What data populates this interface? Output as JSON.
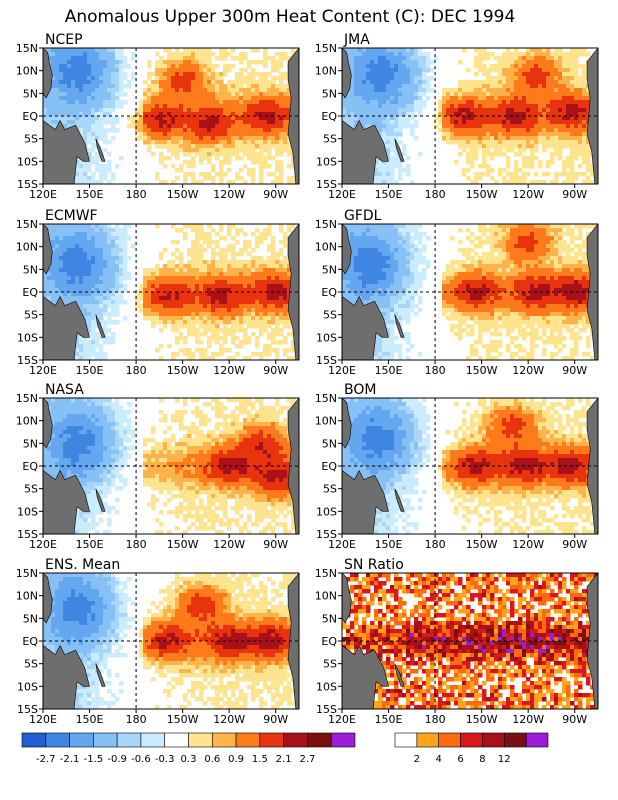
{
  "figure_title": "Anomalous Upper 300m Heat Content (C): DEC 1994",
  "chart_data": [
    {
      "type": "heatmap",
      "title": "NCEP",
      "xticks": [
        "120E",
        "150E",
        "180",
        "150W",
        "120W",
        "90W"
      ],
      "yticks": [
        "15N",
        "10N",
        "5N",
        "EQ",
        "5S",
        "10S",
        "15S"
      ],
      "xlim": [
        120,
        285
      ],
      "ylim": [
        -15,
        15
      ],
      "hot_spots": [
        [
          210,
          8
        ],
        [
          195,
          -1
        ],
        [
          265,
          0
        ],
        [
          228,
          -2
        ]
      ],
      "cold_centre": [
        145,
        10
      ]
    },
    {
      "type": "heatmap",
      "title": "JMA",
      "xticks": [
        "120E",
        "150E",
        "180",
        "150W",
        "120W",
        "90W"
      ],
      "yticks": [
        "15N",
        "10N",
        "5N",
        "EQ",
        "5S",
        "10S",
        "15S"
      ],
      "xlim": [
        120,
        285
      ],
      "ylim": [
        -15,
        15
      ],
      "hot_spots": [
        [
          245,
          9
        ],
        [
          198,
          0
        ],
        [
          232,
          0
        ],
        [
          268,
          1
        ]
      ],
      "cold_centre": [
        148,
        9
      ]
    },
    {
      "type": "heatmap",
      "title": "ECMWF",
      "xticks": [
        "120E",
        "150E",
        "180",
        "150W",
        "120W",
        "90W"
      ],
      "yticks": [
        "15N",
        "10N",
        "5N",
        "EQ",
        "5S",
        "10S",
        "15S"
      ],
      "xlim": [
        120,
        285
      ],
      "ylim": [
        -15,
        15
      ],
      "hot_spots": [
        [
          200,
          -1
        ],
        [
          235,
          -1
        ],
        [
          270,
          0
        ]
      ],
      "cold_centre": [
        145,
        6
      ]
    },
    {
      "type": "heatmap",
      "title": "GFDL",
      "xticks": [
        "120E",
        "150E",
        "180",
        "150W",
        "120W",
        "90W"
      ],
      "yticks": [
        "15N",
        "10N",
        "5N",
        "EQ",
        "5S",
        "10S",
        "15S"
      ],
      "xlim": [
        120,
        285
      ],
      "ylim": [
        -15,
        15
      ],
      "hot_spots": [
        [
          240,
          11
        ],
        [
          205,
          0
        ],
        [
          245,
          0
        ],
        [
          272,
          0
        ]
      ],
      "cold_centre": [
        140,
        6
      ]
    },
    {
      "type": "heatmap",
      "title": "NASA",
      "xticks": [
        "120E",
        "150E",
        "180",
        "150W",
        "120W",
        "90W"
      ],
      "yticks": [
        "15N",
        "10N",
        "5N",
        "EQ",
        "5S",
        "10S",
        "15S"
      ],
      "xlim": [
        120,
        285
      ],
      "ylim": [
        -15,
        15
      ],
      "hot_spots": [
        [
          262,
          5
        ],
        [
          240,
          0
        ],
        [
          270,
          -3
        ]
      ],
      "cold_centre": [
        145,
        5
      ]
    },
    {
      "type": "heatmap",
      "title": "BOM",
      "xticks": [
        "120E",
        "150E",
        "180",
        "150W",
        "120W",
        "90W"
      ],
      "yticks": [
        "15N",
        "10N",
        "5N",
        "EQ",
        "5S",
        "10S",
        "15S"
      ],
      "xlim": [
        120,
        285
      ],
      "ylim": [
        -15,
        15
      ],
      "hot_spots": [
        [
          205,
          0
        ],
        [
          238,
          0
        ],
        [
          268,
          0
        ],
        [
          230,
          9
        ]
      ],
      "cold_centre": [
        145,
        6
      ]
    },
    {
      "type": "heatmap",
      "title": "ENS. Mean",
      "xticks": [
        "120E",
        "150E",
        "180",
        "150W",
        "120W",
        "90W"
      ],
      "yticks": [
        "15N",
        "10N",
        "5N",
        "EQ",
        "5S",
        "10S",
        "15S"
      ],
      "xlim": [
        120,
        285
      ],
      "ylim": [
        -15,
        15
      ],
      "hot_spots": [
        [
          200,
          0
        ],
        [
          240,
          0
        ],
        [
          268,
          0
        ],
        [
          222,
          8
        ]
      ],
      "cold_centre": [
        145,
        7
      ]
    },
    {
      "type": "heatmap",
      "title": "SN Ratio",
      "xticks": [
        "120E",
        "150E",
        "180",
        "150W",
        "120W",
        "90W"
      ],
      "yticks": [
        "15N",
        "10N",
        "5N",
        "EQ",
        "5S",
        "10S",
        "15S"
      ],
      "xlim": [
        120,
        285
      ],
      "ylim": [
        -15,
        15
      ],
      "hot_spots": [
        [
          210,
          0
        ],
        [
          240,
          0
        ],
        [
          270,
          0
        ]
      ],
      "cold_centre": [
        150,
        8
      ]
    }
  ],
  "colorbars": [
    {
      "name": "anomaly",
      "labels": [
        "-2.7",
        "-2.1",
        "-1.5",
        "-0.9",
        "-0.6",
        "-0.3",
        "0.3",
        "0.6",
        "0.9",
        "1.5",
        "2.1",
        "2.7"
      ],
      "colors": [
        "#1f5fcf",
        "#3f86e3",
        "#64a7f0",
        "#86c0f5",
        "#a8d6fb",
        "#cbecfd",
        "#ffffff",
        "#ffe48f",
        "#ffb34a",
        "#ff7a1a",
        "#e8330f",
        "#a8111a",
        "#7a1111",
        "#9a1fd4"
      ]
    },
    {
      "name": "sn-ratio",
      "labels": [
        "2",
        "4",
        "6",
        "8",
        "12"
      ],
      "colors": [
        "#ffffff",
        "#ffa41a",
        "#ff6a10",
        "#d8181a",
        "#a8111a",
        "#7a1111",
        "#9a1fd4"
      ]
    }
  ]
}
